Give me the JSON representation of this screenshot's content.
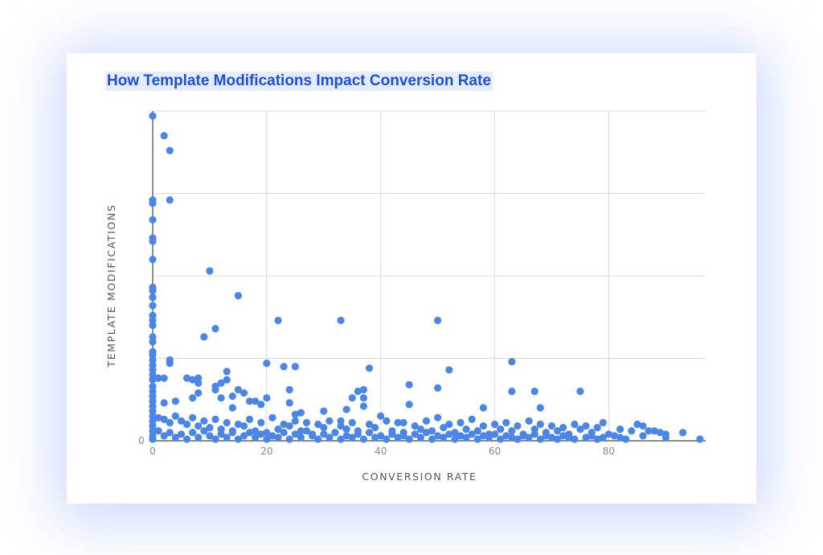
{
  "chart_data": {
    "type": "scatter",
    "title": "How Template Modifications Impact Conversion Rate",
    "xlabel": "CONVERSION RATE",
    "ylabel": "TEMPLATE MODIFICATIONS",
    "xlim": [
      0,
      97
    ],
    "ylim": [
      0,
      200
    ],
    "x_ticks": [
      "0",
      "20",
      "40",
      "60",
      "80"
    ],
    "y_ticks": [
      "0"
    ],
    "y_gridlines": [
      0,
      50,
      100,
      150,
      200
    ],
    "grid": true,
    "legend": "none",
    "color": "#4a86e8",
    "series": [
      {
        "points": [
          [
            0,
            197
          ],
          [
            2,
            185
          ],
          [
            3,
            176
          ],
          [
            3,
            146
          ],
          [
            0,
            146
          ],
          [
            0,
            144
          ],
          [
            0,
            134
          ],
          [
            0,
            123
          ],
          [
            0,
            121
          ],
          [
            0,
            110
          ],
          [
            0,
            93
          ],
          [
            0,
            91
          ],
          [
            0,
            87
          ],
          [
            0,
            82
          ],
          [
            0,
            76
          ],
          [
            0,
            73
          ],
          [
            0,
            70
          ],
          [
            0,
            63
          ],
          [
            0,
            60
          ],
          [
            0,
            54
          ],
          [
            0,
            52
          ],
          [
            0,
            49
          ],
          [
            0,
            46
          ],
          [
            0,
            43
          ],
          [
            0,
            40
          ],
          [
            0,
            37
          ],
          [
            0,
            33
          ],
          [
            0,
            30
          ],
          [
            0,
            27
          ],
          [
            0,
            24
          ],
          [
            0,
            21
          ],
          [
            0,
            18
          ],
          [
            0,
            15
          ],
          [
            0,
            12
          ],
          [
            0,
            9
          ],
          [
            0,
            6
          ],
          [
            0,
            3
          ],
          [
            0,
            1
          ],
          [
            10,
            103
          ],
          [
            15,
            88
          ],
          [
            22,
            73
          ],
          [
            33,
            73
          ],
          [
            50,
            73
          ],
          [
            11,
            68
          ],
          [
            9,
            63
          ],
          [
            3,
            49
          ],
          [
            3,
            47
          ],
          [
            20,
            47
          ],
          [
            23,
            45
          ],
          [
            25,
            45
          ],
          [
            38,
            44
          ],
          [
            52,
            43
          ],
          [
            63,
            48
          ],
          [
            13,
            42
          ],
          [
            1,
            38
          ],
          [
            2,
            38
          ],
          [
            6,
            38
          ],
          [
            7,
            37
          ],
          [
            8,
            38
          ],
          [
            8,
            35
          ],
          [
            12,
            35
          ],
          [
            13,
            37
          ],
          [
            11,
            33
          ],
          [
            11,
            31
          ],
          [
            15,
            31
          ],
          [
            16,
            29
          ],
          [
            8,
            29
          ],
          [
            14,
            27
          ],
          [
            17,
            24
          ],
          [
            18,
            24
          ],
          [
            4,
            24
          ],
          [
            2,
            23
          ],
          [
            12,
            26
          ],
          [
            7,
            26
          ],
          [
            24,
            31
          ],
          [
            37,
            31
          ],
          [
            36,
            30
          ],
          [
            35,
            26
          ],
          [
            37,
            26
          ],
          [
            45,
            34
          ],
          [
            50,
            32
          ],
          [
            63,
            30
          ],
          [
            67,
            30
          ],
          [
            75,
            30
          ],
          [
            45,
            22
          ],
          [
            58,
            20
          ],
          [
            68,
            20
          ],
          [
            20,
            26
          ],
          [
            24,
            23
          ],
          [
            19,
            22
          ],
          [
            14,
            20
          ],
          [
            26,
            17
          ],
          [
            30,
            18
          ],
          [
            25,
            16
          ],
          [
            33,
            12
          ],
          [
            37,
            21
          ],
          [
            34,
            19
          ],
          [
            40,
            15
          ],
          [
            44,
            11
          ],
          [
            1,
            14
          ],
          [
            2,
            13
          ],
          [
            3,
            11
          ],
          [
            4,
            15
          ],
          [
            5,
            12
          ],
          [
            6,
            10
          ],
          [
            7,
            14
          ],
          [
            8,
            9
          ],
          [
            9,
            12
          ],
          [
            10,
            8
          ],
          [
            11,
            13
          ],
          [
            12,
            7
          ],
          [
            13,
            11
          ],
          [
            14,
            6
          ],
          [
            15,
            10
          ],
          [
            16,
            9
          ],
          [
            17,
            13
          ],
          [
            18,
            6
          ],
          [
            19,
            11
          ],
          [
            20,
            5
          ],
          [
            21,
            14
          ],
          [
            22,
            7
          ],
          [
            23,
            10
          ],
          [
            24,
            9
          ],
          [
            25,
            12
          ],
          [
            26,
            6
          ],
          [
            27,
            11
          ],
          [
            28,
            4
          ],
          [
            29,
            10
          ],
          [
            30,
            8
          ],
          [
            31,
            12
          ],
          [
            32,
            5
          ],
          [
            33,
            9
          ],
          [
            34,
            7
          ],
          [
            35,
            11
          ],
          [
            36,
            6
          ],
          [
            38,
            10
          ],
          [
            39,
            8
          ],
          [
            41,
            12
          ],
          [
            42,
            6
          ],
          [
            43,
            11
          ],
          [
            44,
            5
          ],
          [
            46,
            9
          ],
          [
            47,
            7
          ],
          [
            48,
            12
          ],
          [
            49,
            6
          ],
          [
            50,
            14
          ],
          [
            51,
            8
          ],
          [
            52,
            10
          ],
          [
            53,
            5
          ],
          [
            54,
            11
          ],
          [
            55,
            7
          ],
          [
            56,
            13
          ],
          [
            57,
            6
          ],
          [
            58,
            9
          ],
          [
            59,
            4
          ],
          [
            60,
            10
          ],
          [
            61,
            7
          ],
          [
            62,
            11
          ],
          [
            63,
            6
          ],
          [
            64,
            9
          ],
          [
            65,
            4
          ],
          [
            66,
            12
          ],
          [
            67,
            7
          ],
          [
            68,
            10
          ],
          [
            69,
            5
          ],
          [
            70,
            9
          ],
          [
            71,
            6
          ],
          [
            72,
            8
          ],
          [
            73,
            4
          ],
          [
            74,
            10
          ],
          [
            75,
            7
          ],
          [
            76,
            9
          ],
          [
            77,
            5
          ],
          [
            78,
            8
          ],
          [
            79,
            11
          ],
          [
            80,
            4
          ],
          [
            81,
            3
          ],
          [
            82,
            7
          ],
          [
            83,
            1
          ],
          [
            84,
            6
          ],
          [
            85,
            10
          ],
          [
            86,
            9
          ],
          [
            87,
            6
          ],
          [
            89,
            5
          ],
          [
            90,
            2
          ],
          [
            93,
            5
          ],
          [
            96,
            1
          ],
          [
            1,
            6
          ],
          [
            2,
            3
          ],
          [
            3,
            5
          ],
          [
            4,
            2
          ],
          [
            5,
            4
          ],
          [
            6,
            1
          ],
          [
            7,
            5
          ],
          [
            8,
            2
          ],
          [
            9,
            6
          ],
          [
            10,
            3
          ],
          [
            11,
            1
          ],
          [
            12,
            4
          ],
          [
            13,
            2
          ],
          [
            14,
            5
          ],
          [
            15,
            1
          ],
          [
            16,
            3
          ],
          [
            17,
            5
          ],
          [
            18,
            2
          ],
          [
            19,
            4
          ],
          [
            20,
            1
          ],
          [
            21,
            3
          ],
          [
            22,
            2
          ],
          [
            23,
            5
          ],
          [
            24,
            1
          ],
          [
            25,
            4
          ],
          [
            26,
            2
          ],
          [
            27,
            6
          ],
          [
            28,
            3
          ],
          [
            29,
            1
          ],
          [
            30,
            4
          ],
          [
            31,
            2
          ],
          [
            32,
            5
          ],
          [
            33,
            1
          ],
          [
            34,
            3
          ],
          [
            35,
            2
          ],
          [
            36,
            4
          ],
          [
            37,
            1
          ],
          [
            38,
            5
          ],
          [
            39,
            2
          ],
          [
            40,
            3
          ],
          [
            41,
            1
          ],
          [
            42,
            4
          ],
          [
            43,
            2
          ],
          [
            44,
            3
          ],
          [
            45,
            1
          ],
          [
            46,
            4
          ],
          [
            47,
            2
          ],
          [
            48,
            5
          ],
          [
            49,
            1
          ],
          [
            50,
            3
          ],
          [
            51,
            2
          ],
          [
            52,
            4
          ],
          [
            53,
            1
          ],
          [
            54,
            3
          ],
          [
            55,
            2
          ],
          [
            56,
            4
          ],
          [
            57,
            1
          ],
          [
            58,
            3
          ],
          [
            59,
            2
          ],
          [
            60,
            4
          ],
          [
            61,
            1
          ],
          [
            62,
            3
          ],
          [
            63,
            2
          ],
          [
            64,
            1
          ],
          [
            65,
            3
          ],
          [
            66,
            2
          ],
          [
            67,
            4
          ],
          [
            68,
            1
          ],
          [
            69,
            3
          ],
          [
            70,
            2
          ],
          [
            71,
            1
          ],
          [
            72,
            3
          ],
          [
            73,
            2
          ],
          [
            74,
            1
          ],
          [
            76,
            2
          ],
          [
            77,
            3
          ],
          [
            78,
            1
          ],
          [
            79,
            2
          ],
          [
            82,
            2
          ],
          [
            86,
            3
          ],
          [
            88,
            6
          ],
          [
            90,
            4
          ]
        ]
      }
    ]
  }
}
